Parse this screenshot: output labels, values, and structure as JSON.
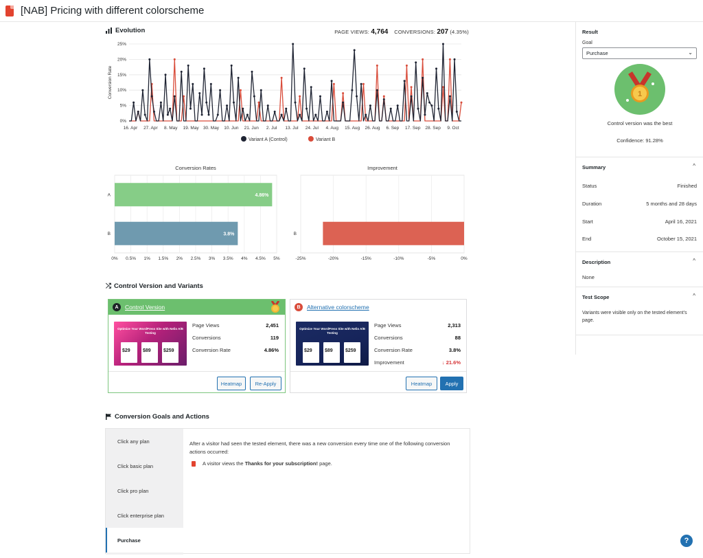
{
  "header": {
    "title": "[NAB] Pricing with different colorscheme"
  },
  "evolution": {
    "title": "Evolution",
    "page_views_label": "PAGE VIEWS:",
    "page_views_value": "4,764",
    "conversions_label": "CONVERSIONS:",
    "conversions_value": "207",
    "conversions_pct": "(4.35%)"
  },
  "chart_data": [
    {
      "type": "line",
      "ylabel": "Conversion Rate",
      "ylim": [
        0,
        25
      ],
      "y_ticks": [
        "0%",
        "5%",
        "10%",
        "15%",
        "20%",
        "25%"
      ],
      "x_ticks": [
        "16. Apr",
        "27. Apr",
        "8. May",
        "19. May",
        "30. May",
        "10. Jun",
        "21. Jun",
        "2. Jul",
        "13. Jul",
        "24. Jul",
        "4. Aug",
        "15. Aug",
        "26. Aug",
        "6. Sep",
        "17. Sep",
        "28. Sep",
        "9. Oct"
      ],
      "legend": "bottom",
      "series": [
        {
          "name": "Variant A (Control)",
          "color": "#1f2433",
          "values": [
            0,
            0,
            6,
            0,
            3,
            0,
            10,
            2,
            0,
            20,
            8,
            3,
            0,
            0,
            6,
            0,
            15,
            2,
            4,
            0,
            8,
            0,
            0,
            16,
            0,
            0,
            18,
            4,
            12,
            0,
            0,
            9,
            2,
            17,
            6,
            2,
            12,
            0,
            0,
            2,
            10,
            0,
            0,
            5,
            0,
            18,
            6,
            0,
            14,
            0,
            4,
            0,
            2,
            0,
            16,
            8,
            0,
            0,
            10,
            0,
            0,
            5,
            0,
            0,
            3,
            0,
            0,
            2,
            0,
            4,
            0,
            0,
            25,
            6,
            0,
            2,
            0,
            17,
            4,
            0,
            11,
            0,
            2,
            0,
            8,
            0,
            0,
            3,
            0,
            13,
            0,
            0,
            0,
            0,
            6,
            0,
            0,
            0,
            10,
            23,
            8,
            0,
            12,
            0,
            2,
            0,
            5,
            0,
            0,
            10,
            0,
            0,
            7,
            0,
            0,
            4,
            0,
            0,
            5,
            0,
            0,
            13,
            0,
            0,
            8,
            0,
            19,
            4,
            0,
            14,
            2,
            9,
            6,
            5,
            0,
            17,
            4,
            0,
            25,
            0,
            0,
            8,
            0,
            20,
            3,
            0,
            0
          ]
        },
        {
          "name": "Variant B",
          "color": "#d94c3a",
          "values": [
            0,
            0,
            0,
            0,
            3,
            0,
            0,
            0,
            0,
            0,
            12,
            0,
            0,
            0,
            0,
            0,
            0,
            0,
            0,
            0,
            20,
            0,
            0,
            0,
            8,
            0,
            0,
            0,
            0,
            0,
            0,
            0,
            0,
            0,
            0,
            0,
            0,
            0,
            0,
            0,
            0,
            0,
            0,
            0,
            0,
            0,
            0,
            0,
            0,
            10,
            0,
            0,
            0,
            0,
            0,
            0,
            0,
            6,
            0,
            0,
            0,
            0,
            0,
            0,
            0,
            0,
            0,
            14,
            0,
            0,
            0,
            0,
            0,
            0,
            0,
            8,
            0,
            0,
            0,
            0,
            0,
            0,
            0,
            0,
            0,
            0,
            0,
            0,
            0,
            0,
            12,
            0,
            0,
            0,
            9,
            0,
            0,
            0,
            0,
            0,
            0,
            0,
            0,
            12,
            0,
            0,
            0,
            0,
            0,
            18,
            0,
            0,
            8,
            0,
            0,
            0,
            0,
            0,
            0,
            0,
            0,
            0,
            18,
            0,
            11,
            0,
            0,
            0,
            0,
            20,
            0,
            0,
            0,
            0,
            0,
            0,
            0,
            0,
            11,
            0,
            0,
            20,
            0,
            0,
            0,
            0,
            6
          ]
        }
      ]
    },
    {
      "type": "bar",
      "title": "Conversion Rates",
      "categories": [
        "A",
        "B"
      ],
      "values": [
        4.86,
        3.8
      ],
      "value_labels": [
        "4.86%",
        "3.8%"
      ],
      "colors": [
        "#86cd87",
        "#6f9aaf"
      ],
      "xlim": [
        0,
        5
      ],
      "x_ticks": [
        "0%",
        "0.5%",
        "1%",
        "1.5%",
        "2%",
        "2.5%",
        "3%",
        "3.5%",
        "4%",
        "4.5%",
        "5%"
      ]
    },
    {
      "type": "bar",
      "title": "Improvement",
      "categories": [
        "B"
      ],
      "values": [
        -21.6
      ],
      "colors": [
        "#dc6253"
      ],
      "xlim": [
        -25,
        0
      ],
      "x_ticks": [
        "-25%",
        "-20%",
        "-15%",
        "-10%",
        "-5%",
        "0%"
      ]
    }
  ],
  "variants": {
    "title": "Control Version and Variants",
    "control": {
      "badge": "A",
      "name": "Control Version",
      "thumb_title": "Optimize Your WordPress Site with Nelio A/B Testing",
      "prices": [
        "$29",
        "$89",
        "$259"
      ],
      "metrics": [
        {
          "label": "Page Views",
          "value": "2,451"
        },
        {
          "label": "Conversions",
          "value": "119"
        },
        {
          "label": "Conversion Rate",
          "value": "4.86%"
        }
      ],
      "buttons": {
        "heatmap": "Heatmap",
        "reapply": "Re-Apply"
      }
    },
    "alternative": {
      "badge": "B",
      "name": "Alternative colorscheme",
      "thumb_title": "Optimize Your WordPress Site with Nelio A/B Testing",
      "prices": [
        "$29",
        "$89",
        "$259"
      ],
      "metrics": [
        {
          "label": "Page Views",
          "value": "2,313"
        },
        {
          "label": "Conversions",
          "value": "88"
        },
        {
          "label": "Conversion Rate",
          "value": "3.8%"
        },
        {
          "label": "Improvement",
          "value": "21.6%"
        }
      ],
      "buttons": {
        "heatmap": "Heatmap",
        "apply": "Apply"
      }
    }
  },
  "goals": {
    "title": "Conversion Goals and Actions",
    "tabs": [
      "Click any plan",
      "Click basic plan",
      "Click pro plan",
      "Click enterprise plan",
      "Purchase"
    ],
    "description": "After a visitor had seen the tested element, there was a new conversion every time one of the following conversion actions occurred:",
    "action_prefix": "A visitor views the",
    "action_page": "Thanks for your subscription!",
    "action_suffix": "page."
  },
  "sidebar": {
    "result": {
      "title": "Result",
      "goal_label": "Goal",
      "goal_value": "Purchase",
      "winner_text": "Control version was the best",
      "confidence": "Confidence: 91.28%"
    },
    "summary": {
      "title": "Summary",
      "rows": [
        {
          "label": "Status",
          "value": "Finished"
        },
        {
          "label": "Duration",
          "value": "5 months and 28 days"
        },
        {
          "label": "Start",
          "value": "April 16, 2021"
        },
        {
          "label": "End",
          "value": "October 15, 2021"
        }
      ]
    },
    "description": {
      "title": "Description",
      "text": "None"
    },
    "scope": {
      "title": "Test Scope",
      "text": "Variants were visible only on the tested element's page."
    }
  },
  "help": {
    "label": "?"
  }
}
